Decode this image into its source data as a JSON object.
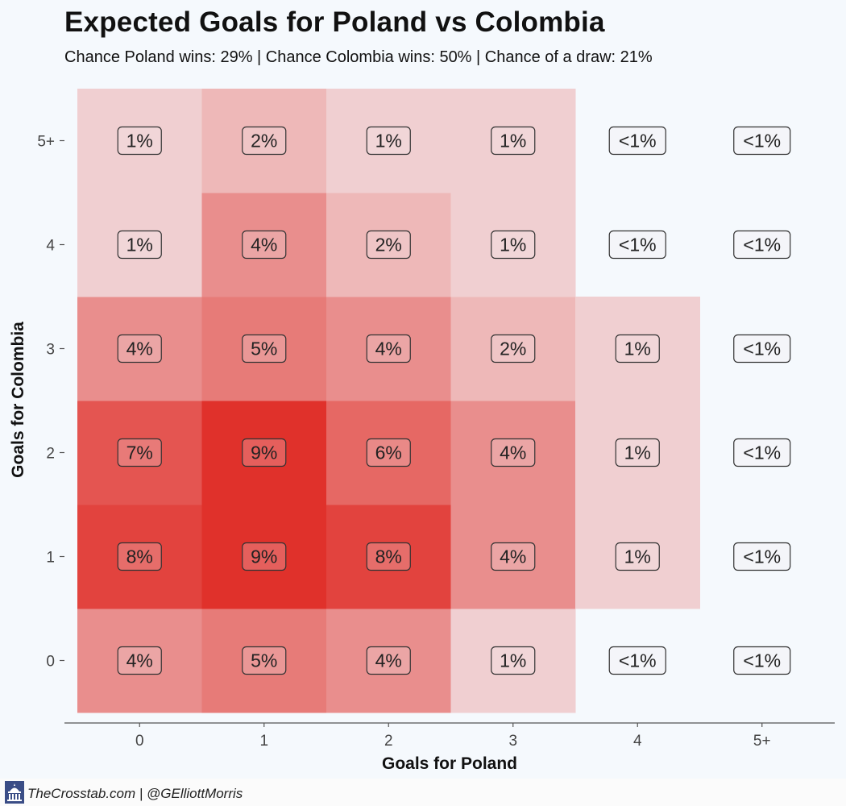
{
  "title": "Expected Goals for Poland vs Colombia",
  "subtitle": "Chance Poland wins: 29% | Chance Colombia wins: 50% | Chance of a draw: 21%",
  "footer": {
    "credit": "TheCrosstab.com | @GElliottMorris",
    "logo_icon": "capitol-building-icon"
  },
  "colors": {
    "background": "#f5f9fd",
    "heat_low": "#f3ecef",
    "heat_high": "#e0312b",
    "label_fill": "#f3ecef",
    "label_border": "#333333"
  },
  "chart_data": {
    "type": "heatmap",
    "title": "Expected Goals for Poland vs Colombia",
    "xlabel": "Goals for Poland",
    "ylabel": "Goals for Colombia",
    "x_categories": [
      "0",
      "1",
      "2",
      "3",
      "4",
      "5+"
    ],
    "y_categories": [
      "0",
      "1",
      "2",
      "3",
      "4",
      "5+"
    ],
    "grid": false,
    "cells": [
      {
        "x": "0",
        "y": "0",
        "value": 4,
        "label": "4%"
      },
      {
        "x": "1",
        "y": "0",
        "value": 5,
        "label": "5%"
      },
      {
        "x": "2",
        "y": "0",
        "value": 4,
        "label": "4%"
      },
      {
        "x": "3",
        "y": "0",
        "value": 1,
        "label": "1%"
      },
      {
        "x": "4",
        "y": "0",
        "value": 0,
        "label": "<1%"
      },
      {
        "x": "5+",
        "y": "0",
        "value": 0,
        "label": "<1%"
      },
      {
        "x": "0",
        "y": "1",
        "value": 8,
        "label": "8%"
      },
      {
        "x": "1",
        "y": "1",
        "value": 9,
        "label": "9%"
      },
      {
        "x": "2",
        "y": "1",
        "value": 8,
        "label": "8%"
      },
      {
        "x": "3",
        "y": "1",
        "value": 4,
        "label": "4%"
      },
      {
        "x": "4",
        "y": "1",
        "value": 1,
        "label": "1%"
      },
      {
        "x": "5+",
        "y": "1",
        "value": 0,
        "label": "<1%"
      },
      {
        "x": "0",
        "y": "2",
        "value": 7,
        "label": "7%"
      },
      {
        "x": "1",
        "y": "2",
        "value": 9,
        "label": "9%"
      },
      {
        "x": "2",
        "y": "2",
        "value": 6,
        "label": "6%"
      },
      {
        "x": "3",
        "y": "2",
        "value": 4,
        "label": "4%"
      },
      {
        "x": "4",
        "y": "2",
        "value": 1,
        "label": "1%"
      },
      {
        "x": "5+",
        "y": "2",
        "value": 0,
        "label": "<1%"
      },
      {
        "x": "0",
        "y": "3",
        "value": 4,
        "label": "4%"
      },
      {
        "x": "1",
        "y": "3",
        "value": 5,
        "label": "5%"
      },
      {
        "x": "2",
        "y": "3",
        "value": 4,
        "label": "4%"
      },
      {
        "x": "3",
        "y": "3",
        "value": 2,
        "label": "2%"
      },
      {
        "x": "4",
        "y": "3",
        "value": 1,
        "label": "1%"
      },
      {
        "x": "5+",
        "y": "3",
        "value": 0,
        "label": "<1%"
      },
      {
        "x": "0",
        "y": "4",
        "value": 1,
        "label": "1%"
      },
      {
        "x": "1",
        "y": "4",
        "value": 4,
        "label": "4%"
      },
      {
        "x": "2",
        "y": "4",
        "value": 2,
        "label": "2%"
      },
      {
        "x": "3",
        "y": "4",
        "value": 1,
        "label": "1%"
      },
      {
        "x": "4",
        "y": "4",
        "value": 0,
        "label": "<1%"
      },
      {
        "x": "5+",
        "y": "4",
        "value": 0,
        "label": "<1%"
      },
      {
        "x": "0",
        "y": "5+",
        "value": 1,
        "label": "1%"
      },
      {
        "x": "1",
        "y": "5+",
        "value": 2,
        "label": "2%"
      },
      {
        "x": "2",
        "y": "5+",
        "value": 1,
        "label": "1%"
      },
      {
        "x": "3",
        "y": "5+",
        "value": 1,
        "label": "1%"
      },
      {
        "x": "4",
        "y": "5+",
        "value": 0,
        "label": "<1%"
      },
      {
        "x": "5+",
        "y": "5+",
        "value": 0,
        "label": "<1%"
      }
    ]
  }
}
